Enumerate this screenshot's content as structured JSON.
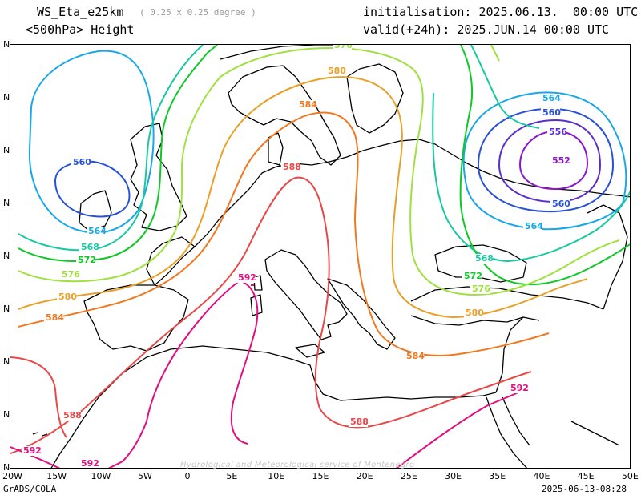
{
  "header": {
    "model": "WS_Eta_e25km",
    "resolution": "( 0.25 x 0.25 degree )",
    "field": "<500hPa> Height",
    "initialisation": "initialisation: 2025.06.13.  00:00 UTC",
    "valid": "valid(+24h): 2025.JUN.14 00:00 UTC"
  },
  "footer": {
    "software": "GrADS/COLA",
    "timestamp": "2025-06-13-08:28",
    "watermark": "Hydrological and Meteorological service of Montenegro"
  },
  "axes": {
    "lon_labels": [
      "20W",
      "15W",
      "10W",
      "5W",
      "0",
      "5E",
      "10E",
      "15E",
      "20E",
      "25E",
      "30E",
      "35E",
      "40E",
      "45E",
      "50E"
    ],
    "lat_labels": [
      "N",
      "N",
      "N",
      "N",
      "N",
      "N",
      "N",
      "N",
      "N"
    ]
  },
  "colors": {
    "c552": "#8a16c8",
    "c556": "#5a2ec8",
    "c560": "#2850d8",
    "c564": "#18a8e8",
    "c568": "#18c8a0",
    "c572": "#10c828",
    "c576": "#a0e040",
    "c580": "#e8a028",
    "c584": "#f07820",
    "c588": "#e84848",
    "c592": "#e01080",
    "coast": "#000000"
  },
  "contours": [
    {
      "label": "552",
      "color": "c552"
    },
    {
      "label": "556",
      "color": "c556"
    },
    {
      "label": "560",
      "color": "c560"
    },
    {
      "label": "564",
      "color": "c564"
    },
    {
      "label": "568",
      "color": "c568"
    },
    {
      "label": "572",
      "color": "c572"
    },
    {
      "label": "576",
      "color": "c576"
    },
    {
      "label": "580",
      "color": "c580"
    },
    {
      "label": "584",
      "color": "c584"
    },
    {
      "label": "588",
      "color": "c588"
    },
    {
      "label": "592",
      "color": "c592"
    }
  ]
}
